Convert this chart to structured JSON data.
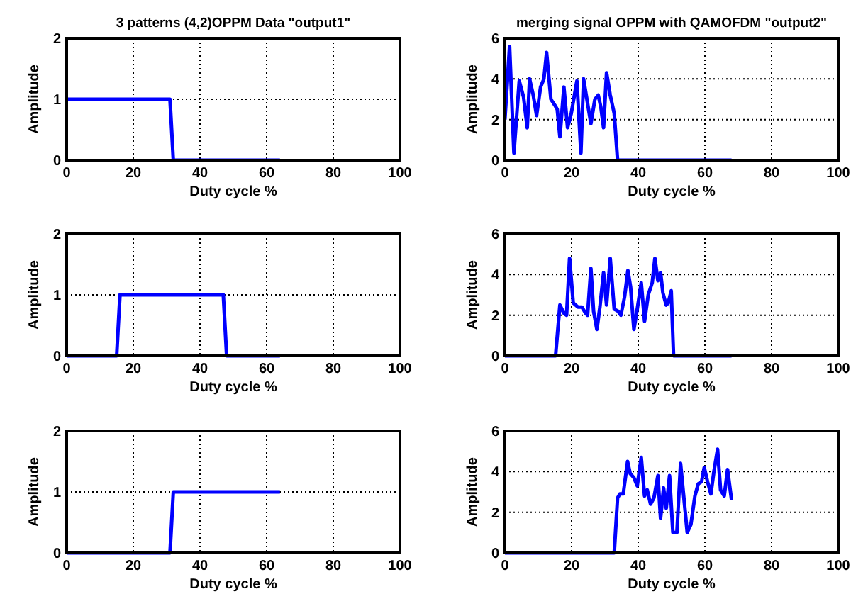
{
  "chart_data": [
    {
      "type": "line",
      "title": "3 patterns (4,2)OPPM Data \"output1\"",
      "xlabel": "Duty cycle %",
      "ylabel": "Amplitude",
      "xlim": [
        0,
        100
      ],
      "ylim": [
        0,
        2
      ],
      "xticks": [
        0,
        20,
        40,
        60,
        80,
        100
      ],
      "yticks": [
        0,
        1,
        2
      ],
      "grid": true,
      "series": [
        {
          "color": "#0000ff",
          "x": [
            0,
            31,
            32,
            64
          ],
          "values": [
            1,
            1,
            0,
            0
          ]
        }
      ]
    },
    {
      "type": "line",
      "title": "merging signal OPPM with QAMOFDM \"output2\"",
      "xlabel": "Duty cycle %",
      "ylabel": "Amplitude",
      "xlim": [
        0,
        100
      ],
      "ylim": [
        0,
        6
      ],
      "xticks": [
        0,
        20,
        40,
        60,
        80,
        100
      ],
      "yticks": [
        0,
        2,
        4,
        6
      ],
      "grid": true,
      "series": [
        {
          "color": "#0000ff",
          "x": [
            0,
            1.4,
            2.7,
            4.3,
            5.6,
            6.7,
            7.4,
            8.5,
            9.5,
            10.7,
            11.7,
            12.5,
            13.8,
            15,
            15.7,
            16.5,
            17.7,
            18.8,
            19.9,
            21.6,
            22.8,
            23.6,
            24.8,
            25.8,
            27,
            28,
            28.8,
            29.6,
            30.5,
            31.6,
            32.8,
            33.8,
            68
          ],
          "values": [
            2,
            5.6,
            0.35,
            3.9,
            3.1,
            1.6,
            4,
            3.2,
            2.2,
            3.6,
            4,
            5.3,
            3,
            2.7,
            2.5,
            1.15,
            3.6,
            1.6,
            2.3,
            3.9,
            0.35,
            4,
            2.8,
            1.8,
            3,
            3.2,
            2.6,
            1.6,
            4.3,
            3.2,
            2.3,
            0,
            0
          ]
        }
      ]
    },
    {
      "type": "line",
      "xlabel": "Duty cycle %",
      "ylabel": "Amplitude",
      "xlim": [
        0,
        100
      ],
      "ylim": [
        0,
        2
      ],
      "xticks": [
        0,
        20,
        40,
        60,
        80,
        100
      ],
      "yticks": [
        0,
        1,
        2
      ],
      "grid": true,
      "series": [
        {
          "color": "#0000ff",
          "x": [
            0,
            15,
            16,
            47,
            48,
            64
          ],
          "values": [
            0,
            0,
            1,
            1,
            0,
            0
          ]
        }
      ]
    },
    {
      "type": "line",
      "xlabel": "Duty cycle %",
      "ylabel": "Amplitude",
      "xlim": [
        0,
        100
      ],
      "ylim": [
        0,
        6
      ],
      "xticks": [
        0,
        20,
        40,
        60,
        80,
        100
      ],
      "yticks": [
        0,
        2,
        4,
        6
      ],
      "grid": true,
      "series": [
        {
          "color": "#0000ff",
          "x": [
            0,
            15.2,
            16.5,
            17.7,
            18.5,
            19.4,
            20.5,
            21.9,
            23.1,
            24.2,
            24.8,
            25.8,
            26.6,
            27.6,
            28.5,
            29.6,
            30.5,
            31.6,
            32.8,
            33.9,
            34.8,
            35.9,
            36.9,
            37.7,
            38.7,
            39.7,
            40.9,
            41.9,
            43,
            44.2,
            45,
            45.9,
            46.7,
            47.4,
            48.4,
            49,
            49.9,
            50.6,
            68
          ],
          "values": [
            0,
            0,
            2.5,
            2.1,
            2,
            4.8,
            2.6,
            2.4,
            2.4,
            2.1,
            2,
            4.3,
            2.2,
            1.3,
            2.4,
            4.1,
            2.5,
            4.8,
            2.3,
            2.2,
            2,
            2.9,
            4.2,
            3.4,
            1.3,
            2.3,
            3.6,
            1.7,
            3,
            3.6,
            4.8,
            3.7,
            4.1,
            3.1,
            2.5,
            2.6,
            3.2,
            0,
            0
          ]
        }
      ]
    },
    {
      "type": "line",
      "xlabel": "Duty cycle %",
      "ylabel": "Amplitude",
      "xlim": [
        0,
        100
      ],
      "ylim": [
        0,
        2
      ],
      "xticks": [
        0,
        20,
        40,
        60,
        80,
        100
      ],
      "yticks": [
        0,
        1,
        2
      ],
      "grid": true,
      "series": [
        {
          "color": "#0000ff",
          "x": [
            0,
            31,
            32,
            64
          ],
          "values": [
            0,
            0,
            1,
            1
          ]
        }
      ]
    },
    {
      "type": "line",
      "xlabel": "Duty cycle %",
      "ylabel": "Amplitude",
      "xlim": [
        0,
        100
      ],
      "ylim": [
        0,
        6
      ],
      "xticks": [
        0,
        20,
        40,
        60,
        80,
        100
      ],
      "yticks": [
        0,
        2,
        4,
        6
      ],
      "grid": true,
      "series": [
        {
          "color": "#0000ff",
          "x": [
            0,
            32.8,
            33.8,
            34.5,
            35.5,
            36.8,
            37.6,
            38.7,
            39.7,
            40.9,
            41.9,
            42.7,
            43.7,
            44.7,
            45.9,
            46.7,
            47.6,
            48.4,
            49.4,
            50.4,
            51.6,
            52.7,
            53.7,
            54.7,
            55.8,
            57,
            58,
            59,
            59.8,
            60.8,
            61.8,
            62.7,
            63.8,
            64.7,
            65.8,
            66.8,
            68
          ],
          "values": [
            0,
            0,
            2.7,
            2.9,
            2.9,
            4.5,
            3.9,
            3.7,
            3.3,
            4.7,
            2.8,
            3.1,
            2.4,
            2.7,
            3.8,
            1.7,
            3.2,
            2.2,
            3.8,
            1,
            1,
            4.4,
            2.7,
            1,
            1.4,
            2.8,
            3.4,
            3.5,
            4.2,
            3.5,
            2.9,
            4,
            5.1,
            3.1,
            2.8,
            4.1,
            2.6
          ]
        }
      ]
    }
  ]
}
